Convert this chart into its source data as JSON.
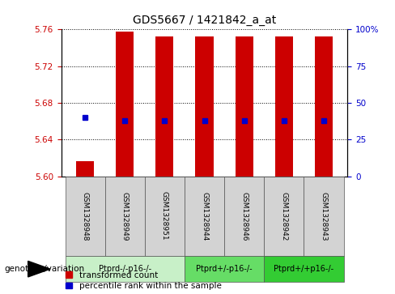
{
  "title": "GDS5667 / 1421842_a_at",
  "samples": [
    "GSM1328948",
    "GSM1328949",
    "GSM1328951",
    "GSM1328944",
    "GSM1328946",
    "GSM1328942",
    "GSM1328943"
  ],
  "bar_bottom": 5.6,
  "bar_top_values": [
    5.617,
    5.758,
    5.752,
    5.752,
    5.752,
    5.752,
    5.752
  ],
  "percentile_values": [
    5.664,
    5.661,
    5.661,
    5.661,
    5.661,
    5.661,
    5.661
  ],
  "ylim_min": 5.6,
  "ylim_max": 5.76,
  "yticks_left": [
    5.6,
    5.64,
    5.68,
    5.72,
    5.76
  ],
  "yticks_right": [
    0,
    25,
    50,
    75,
    100
  ],
  "bar_color": "#cc0000",
  "percentile_color": "#0000cc",
  "bar_width": 0.45,
  "percentile_marker_size": 30,
  "group_colors": [
    "#c8f0c8",
    "#66dd66",
    "#33cc33"
  ],
  "groups": [
    {
      "label": "Ptprd-/-p16-/-",
      "sample_indices": [
        0,
        1,
        2
      ]
    },
    {
      "label": "Ptprd+/-p16-/-",
      "sample_indices": [
        3,
        4
      ]
    },
    {
      "label": "Ptprd+/+p16-/-",
      "sample_indices": [
        5,
        6
      ]
    }
  ],
  "legend_items": [
    {
      "label": "transformed count",
      "color": "#cc0000"
    },
    {
      "label": "percentile rank within the sample",
      "color": "#0000cc"
    }
  ],
  "genotype_label": "genotype/variation",
  "tick_label_color_left": "#cc0000",
  "tick_label_color_right": "#0000cc",
  "sample_box_color": "#d3d3d3",
  "sample_box_edge": "#555555"
}
